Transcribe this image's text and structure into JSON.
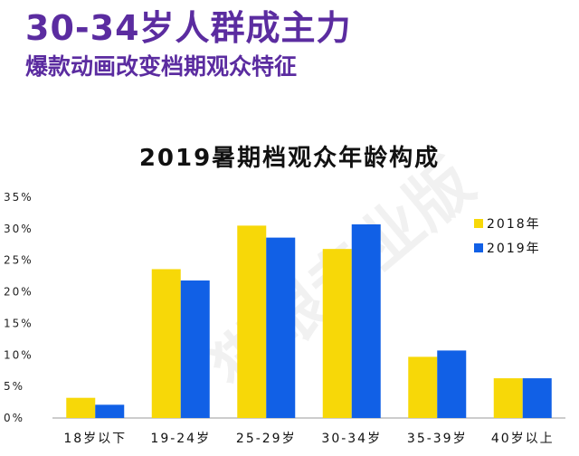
{
  "header": {
    "title": "30-34岁人群成主力",
    "subtitle": "爆款动画改变档期观众特征"
  },
  "watermark": "猫眼专业版",
  "colors": {
    "series_2018": "#f7d808",
    "series_2019": "#1160e6",
    "title": "#5b2ca0"
  },
  "chart_data": {
    "type": "bar",
    "title": "2019暑期档观众年龄构成",
    "categories": [
      "18岁以下",
      "19-24岁",
      "25-29岁",
      "30-34岁",
      "35-39岁",
      "40岁以上"
    ],
    "series": [
      {
        "name": "2018年",
        "values": [
          3.2,
          23.6,
          30.5,
          26.8,
          9.7,
          6.3
        ]
      },
      {
        "name": "2019年",
        "values": [
          2.1,
          21.8,
          28.6,
          30.7,
          10.7,
          6.3
        ]
      }
    ],
    "ylim": [
      0,
      35
    ],
    "yticks": [
      "0%",
      "5%",
      "10%",
      "15%",
      "20%",
      "25%",
      "30%",
      "35%"
    ],
    "legend": "right"
  }
}
